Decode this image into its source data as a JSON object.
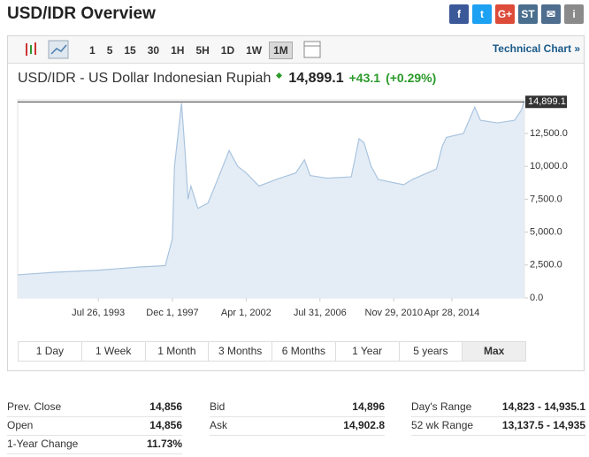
{
  "header": {
    "title": "USD/IDR Overview",
    "share": [
      "f",
      "t",
      "G+",
      "ST",
      "✉",
      "i"
    ]
  },
  "toolbar": {
    "intervals": [
      "1",
      "5",
      "15",
      "30",
      "1H",
      "5H",
      "1D",
      "1W",
      "1M"
    ],
    "link": "Technical Chart »"
  },
  "quote": {
    "name": "USD/IDR - US Dollar Indonesian Rupiah",
    "price": "14,899.1",
    "change": "+43.1",
    "change_pct": "(+0.29%)"
  },
  "chart_data": {
    "type": "area",
    "color": "#a9c4de",
    "x": [
      "1988-11-01",
      "1991-01-01",
      "1993-07-01",
      "1996-01-01",
      "1997-07-01",
      "1997-12-01",
      "1998-01-15",
      "1998-06-15",
      "1998-09-01",
      "1998-11-01",
      "1999-01-01",
      "1999-06-01",
      "2000-01-01",
      "2000-06-01",
      "2001-04-01",
      "2001-10-01",
      "2002-04-01",
      "2003-01-01",
      "2004-01-01",
      "2005-03-01",
      "2005-09-01",
      "2006-01-01",
      "2007-01-01",
      "2008-06-01",
      "2008-11-15",
      "2009-03-01",
      "2009-08-01",
      "2010-01-01",
      "2011-07-01",
      "2012-01-01",
      "2013-06-01",
      "2013-10-01",
      "2014-01-01",
      "2015-01-01",
      "2015-09-01",
      "2016-01-01",
      "2017-01-01",
      "2018-01-01",
      "2018-06-01",
      "2018-07-20"
    ],
    "values": [
      1750,
      1950,
      2100,
      2350,
      2450,
      4500,
      10000,
      14800,
      11000,
      7500,
      8500,
      6800,
      7200,
      8500,
      11200,
      10000,
      9500,
      8500,
      9000,
      9500,
      10500,
      9300,
      9100,
      9200,
      12100,
      11800,
      10000,
      9000,
      8600,
      9000,
      9800,
      11500,
      12200,
      12500,
      14500,
      13500,
      13300,
      13500,
      14300,
      14899.1
    ],
    "xlim": [
      "1988-11-01",
      "2018-08-01"
    ],
    "xticks": [
      {
        "value": "1993-07-26",
        "label": "Jul 26, 1993"
      },
      {
        "value": "1997-12-01",
        "label": "Dec 1, 1997"
      },
      {
        "value": "2002-04-01",
        "label": "Apr 1, 2002"
      },
      {
        "value": "2006-07-31",
        "label": "Jul 31, 2006"
      },
      {
        "value": "2010-11-29",
        "label": "Nov 29, 2010"
      },
      {
        "value": "2014-04-28",
        "label": "Apr 28, 2014"
      }
    ],
    "ylim": [
      0,
      15050
    ],
    "yticks": [
      {
        "value": 0,
        "label": "0.0"
      },
      {
        "value": 2500,
        "label": "2,500.0"
      },
      {
        "value": 5000,
        "label": "5,000.0"
      },
      {
        "value": 7500,
        "label": "7,500.0"
      },
      {
        "value": 10000,
        "label": "10,000.0"
      },
      {
        "value": 12500,
        "label": "12,500.0"
      }
    ],
    "reference_line": {
      "value": 14899.1,
      "label": "14,899.1"
    }
  },
  "ranges": [
    "1 Day",
    "1 Week",
    "1 Month",
    "3 Months",
    "6 Months",
    "1 Year",
    "5 years",
    "Max"
  ],
  "stats": [
    [
      [
        "Prev. Close",
        "14,856"
      ],
      [
        "Open",
        "14,856"
      ],
      [
        "1-Year Change",
        "11.73%"
      ]
    ],
    [
      [
        "Bid",
        "14,896"
      ],
      [
        "Ask",
        "14,902.8"
      ]
    ],
    [
      [
        "Day's Range",
        "14,823 - 14,935.1"
      ],
      [
        "52 wk Range",
        "13,137.5 - 14,935"
      ]
    ]
  ]
}
